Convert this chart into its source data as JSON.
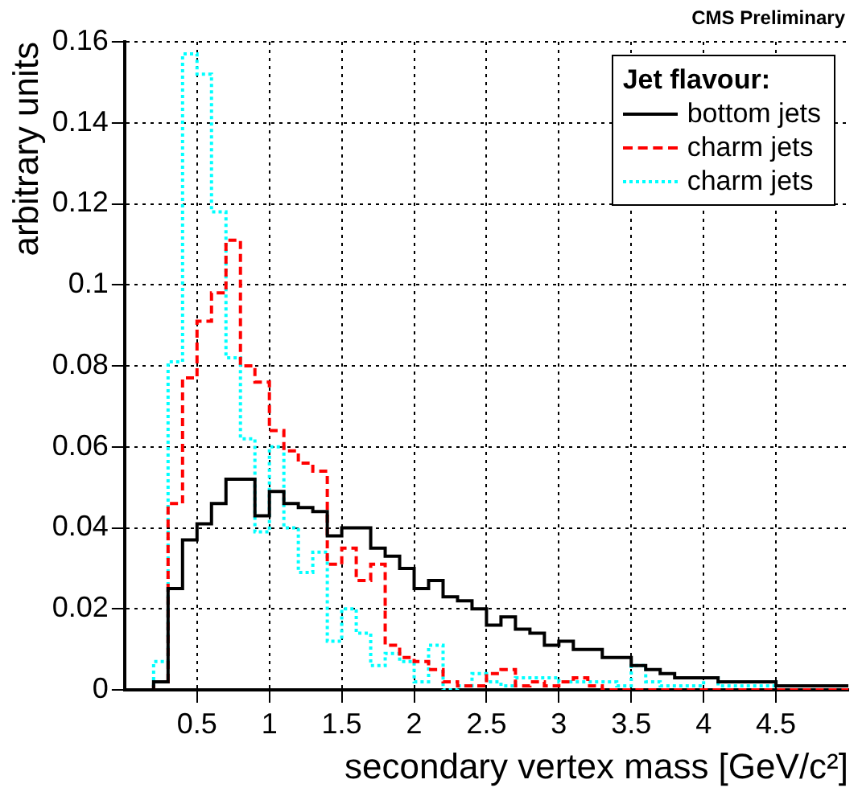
{
  "chart_data": {
    "type": "histogram",
    "xlabel": "secondary vertex mass [GeV/c²]",
    "ylabel": "arbitrary units",
    "legend_title": "Jet flavour:",
    "annotations": [
      "CMS Preliminary"
    ],
    "bins": [
      0,
      0.1,
      0.2,
      0.3,
      0.4,
      0.5,
      0.6,
      0.7,
      0.8,
      0.9,
      1.0,
      1.1,
      1.2,
      1.3,
      1.4,
      1.5,
      1.6,
      1.7,
      1.8,
      1.9,
      2.0,
      2.1,
      2.2,
      2.3,
      2.4,
      2.5,
      2.6,
      2.7,
      2.8,
      2.9,
      3.0,
      3.1,
      3.2,
      3.3,
      3.4,
      3.5,
      3.6,
      3.7,
      3.8,
      3.9,
      4.0,
      4.1,
      4.2,
      4.3,
      4.4,
      4.5,
      4.6,
      4.7,
      4.8,
      4.9,
      5.0
    ],
    "series": [
      {
        "name": "bottom jets",
        "color": "#000000",
        "line_style": "solid",
        "values": [
          0,
          0,
          0.002,
          0.025,
          0.037,
          0.041,
          0.046,
          0.052,
          0.052,
          0.043,
          0.049,
          0.046,
          0.045,
          0.044,
          0.038,
          0.04,
          0.04,
          0.035,
          0.033,
          0.03,
          0.025,
          0.027,
          0.023,
          0.022,
          0.02,
          0.016,
          0.018,
          0.015,
          0.014,
          0.011,
          0.012,
          0.01,
          0.01,
          0.008,
          0.008,
          0.006,
          0.005,
          0.004,
          0.003,
          0.003,
          0.003,
          0.002,
          0.002,
          0.002,
          0.002,
          0.001,
          0.001,
          0.001,
          0.001,
          0.001
        ]
      },
      {
        "name": "charm jets",
        "color": "#ff0000",
        "line_style": "dashed",
        "values": [
          0,
          0,
          0.002,
          0.046,
          0.077,
          0.091,
          0.098,
          0.111,
          0.08,
          0.076,
          0.064,
          0.059,
          0.056,
          0.054,
          0.031,
          0.035,
          0.027,
          0.031,
          0.011,
          0.008,
          0.007,
          0.005,
          0.002,
          0.001,
          0.001,
          0.004,
          0.005,
          0.001,
          0.002,
          0.001,
          0.002,
          0.003,
          0.001,
          0,
          0,
          0,
          0,
          0,
          0,
          0,
          0,
          0,
          0,
          0,
          0,
          0,
          0,
          0,
          0,
          0
        ]
      },
      {
        "name": "charm jets",
        "color": "#00ffff",
        "line_style": "dotted",
        "values": [
          0,
          0,
          0.007,
          0.081,
          0.157,
          0.152,
          0.118,
          0.082,
          0.062,
          0.039,
          0.06,
          0.04,
          0.029,
          0.034,
          0.012,
          0.02,
          0.014,
          0.006,
          0.009,
          0.007,
          0.002,
          0.011,
          0,
          0.001,
          0.004,
          0.002,
          0.001,
          0.003,
          0.003,
          0.003,
          0.002,
          0.002,
          0.002,
          0.002,
          0.001,
          0.006,
          0.002,
          0.001,
          0.001,
          0.001,
          0.003,
          0.001,
          0.001,
          0.001,
          0.001,
          0.001,
          0.001,
          0.001,
          0.001,
          0.001
        ]
      }
    ],
    "xlim": [
      0,
      5
    ],
    "xticks": [
      0.5,
      1,
      1.5,
      2,
      2.5,
      3,
      3.5,
      4,
      4.5
    ],
    "ylim": [
      0,
      0.16
    ],
    "yticks": [
      0,
      0.02,
      0.04,
      0.06,
      0.08,
      0.1,
      0.12,
      0.14,
      0.16
    ],
    "grid": true,
    "legend": "top right"
  }
}
